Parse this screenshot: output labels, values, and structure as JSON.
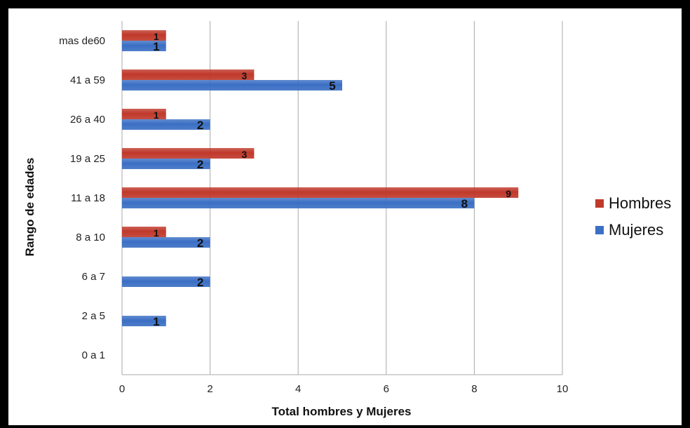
{
  "chart_data": {
    "type": "bar",
    "orientation": "horizontal",
    "categories": [
      "0 a 1",
      "2 a 5",
      "6 a 7",
      "8 a 10",
      "11 a 18",
      "19 a 25",
      "26 a 40",
      "41 a 59",
      "mas de60"
    ],
    "series": [
      {
        "name": "Hombres",
        "color": "#c0392b",
        "values": [
          0,
          0,
          0,
          1,
          9,
          3,
          1,
          3,
          1
        ]
      },
      {
        "name": "Mujeres",
        "color": "#3b6fc4",
        "values": [
          0,
          1,
          2,
          2,
          8,
          2,
          2,
          5,
          1
        ]
      }
    ],
    "xlabel": "Total hombres y Mujeres",
    "ylabel": "Rango de edades",
    "xlim": [
      0,
      10
    ],
    "xticks": [
      "0",
      "2",
      "4",
      "6",
      "8",
      "10"
    ],
    "grid": "vertical",
    "legend": "right"
  }
}
